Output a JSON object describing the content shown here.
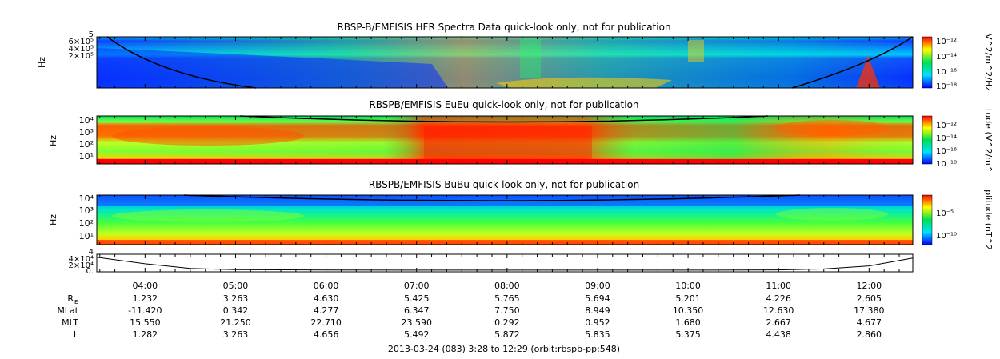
{
  "footer": "2013-03-24 (083) 3:28 to 12:29 (orbit:rbspb-pp:548)",
  "time_ticks": [
    "04:00",
    "05:00",
    "06:00",
    "07:00",
    "08:00",
    "09:00",
    "10:00",
    "11:00",
    "12:00"
  ],
  "ephemeris": {
    "rows": [
      {
        "label": "R",
        "sub": "E",
        "values": [
          "1.232",
          "3.263",
          "4.630",
          "5.425",
          "5.765",
          "5.694",
          "5.201",
          "4.226",
          "2.605"
        ]
      },
      {
        "label": "MLat",
        "sub": "",
        "values": [
          "-11.420",
          "0.342",
          "4.277",
          "6.347",
          "7.750",
          "8.949",
          "10.350",
          "12.630",
          "17.380"
        ]
      },
      {
        "label": "MLT",
        "sub": "",
        "values": [
          "15.550",
          "21.250",
          "22.710",
          "23.590",
          "0.292",
          "0.952",
          "1.680",
          "2.667",
          "4.677"
        ]
      },
      {
        "label": "L",
        "sub": "",
        "values": [
          "1.282",
          "3.263",
          "4.656",
          "5.492",
          "5.872",
          "5.835",
          "5.375",
          "4.438",
          "2.860"
        ]
      }
    ]
  },
  "colors": {
    "low": "#0000ff",
    "mid_low": "#00e0ff",
    "mid": "#00e050",
    "mid_high": "#ffff00",
    "high": "#ff0000",
    "curve": "#000000"
  },
  "chart_data": [
    {
      "type": "heatmap",
      "title": "RBSP-B/EMFISIS  HFR Spectra Data quick-look only, not for publication",
      "ylabel": "Hz",
      "yticks": [
        "6×10⁵",
        "4×10⁵",
        "2×10⁵"
      ],
      "y_top_label": "5",
      "colorbar_label": "V^2/m^2/Hz",
      "colorbar_ticks": [
        "10⁻¹²",
        "10⁻¹⁴",
        "10⁻¹⁶",
        "10⁻¹⁸"
      ],
      "x_range": [
        "03:28",
        "12:29"
      ]
    },
    {
      "type": "heatmap",
      "title": "RBSPB/EMFISIS  EuEu quick-look only, not for publication",
      "ylabel": "Hz",
      "yticks": [
        "10⁴",
        "10³",
        "10²",
        "10¹"
      ],
      "colorbar_label": "tude (V^2/m^",
      "colorbar_ticks": [
        "10⁻¹²",
        "10⁻¹⁴",
        "10⁻¹⁶",
        "10⁻¹⁸"
      ],
      "x_range": [
        "03:28",
        "12:29"
      ]
    },
    {
      "type": "heatmap",
      "title": "RBSPB/EMFISIS  BuBu quick-look only, not for publication",
      "ylabel": "Hz",
      "yticks": [
        "10⁴",
        "10³",
        "10²",
        "10¹"
      ],
      "colorbar_label": "plitude (nT^2",
      "colorbar_ticks": [
        "10⁻⁵",
        "10⁻¹⁰"
      ],
      "x_range": [
        "03:28",
        "12:29"
      ]
    },
    {
      "type": "line",
      "title": "",
      "yticks": [
        "4×10⁴",
        "2×10⁴",
        "0."
      ],
      "y_top_label": "4",
      "x": [
        "03:28",
        "04:00",
        "04:30",
        "05:00",
        "06:00",
        "07:00",
        "08:00",
        "09:00",
        "10:00",
        "11:00",
        "11:30",
        "12:00",
        "12:29"
      ],
      "y": [
        36000,
        18000,
        5000,
        1500,
        400,
        200,
        150,
        180,
        300,
        900,
        3500,
        12000,
        34000
      ]
    }
  ]
}
